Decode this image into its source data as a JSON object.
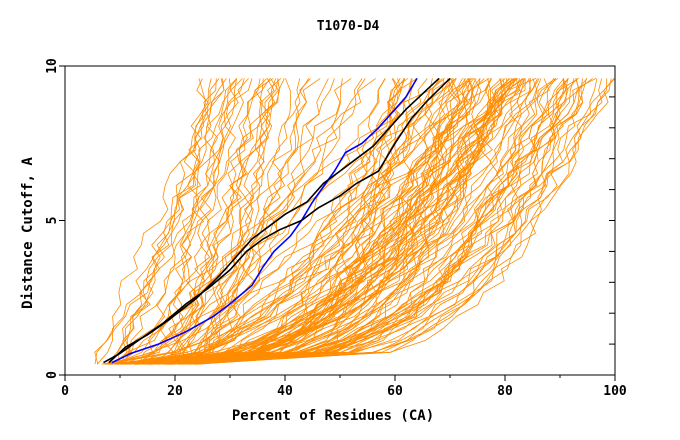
{
  "chart_data": {
    "type": "line",
    "title": "T1070-D4",
    "xlabel": "Percent of Residues (CA)",
    "ylabel": "Distance Cutoff, A",
    "xlim": [
      0,
      100
    ],
    "ylim": [
      0,
      10
    ],
    "x_ticks": [
      "0",
      "20",
      "40",
      "60",
      "80",
      "100"
    ],
    "y_ticks": [
      "0",
      "5",
      "10"
    ],
    "grid": false,
    "colors": {
      "background_models": "#ff8c00",
      "highlight_blue": "#0000ff",
      "highlight_black": "#000000"
    },
    "highlight_series": [
      {
        "name": "model-blue",
        "color": "#0000ff",
        "points": [
          [
            8.5,
            0.4
          ],
          [
            12,
            0.7
          ],
          [
            17,
            1.0
          ],
          [
            22,
            1.4
          ],
          [
            27,
            1.9
          ],
          [
            30,
            2.3
          ],
          [
            34,
            2.9
          ],
          [
            36,
            3.5
          ],
          [
            38,
            4.0
          ],
          [
            41,
            4.5
          ],
          [
            43,
            5.0
          ],
          [
            45,
            5.6
          ],
          [
            47,
            6.1
          ],
          [
            49,
            6.6
          ],
          [
            51,
            7.2
          ],
          [
            54,
            7.5
          ],
          [
            57,
            8.0
          ],
          [
            60,
            8.6
          ],
          [
            62,
            9.0
          ],
          [
            64,
            9.6
          ]
        ]
      },
      {
        "name": "model-black-1",
        "color": "#000000",
        "points": [
          [
            8,
            0.4
          ],
          [
            11,
            0.9
          ],
          [
            15,
            1.3
          ],
          [
            19,
            1.8
          ],
          [
            24,
            2.5
          ],
          [
            28,
            3.2
          ],
          [
            31,
            3.8
          ],
          [
            34,
            4.4
          ],
          [
            37,
            4.8
          ],
          [
            40,
            5.2
          ],
          [
            44,
            5.6
          ],
          [
            47,
            6.2
          ],
          [
            50,
            6.6
          ],
          [
            53,
            7.0
          ],
          [
            56,
            7.4
          ],
          [
            59,
            8.0
          ],
          [
            62,
            8.6
          ],
          [
            65,
            9.1
          ],
          [
            68,
            9.6
          ]
        ]
      },
      {
        "name": "model-black-2",
        "color": "#000000",
        "points": [
          [
            7,
            0.4
          ],
          [
            10,
            0.7
          ],
          [
            14,
            1.2
          ],
          [
            18,
            1.7
          ],
          [
            22,
            2.3
          ],
          [
            26,
            2.8
          ],
          [
            30,
            3.4
          ],
          [
            33,
            4.0
          ],
          [
            36,
            4.4
          ],
          [
            39,
            4.7
          ],
          [
            43,
            5.0
          ],
          [
            46,
            5.4
          ],
          [
            50,
            5.8
          ],
          [
            53,
            6.2
          ],
          [
            57,
            6.6
          ],
          [
            60,
            7.5
          ],
          [
            63,
            8.3
          ],
          [
            66,
            8.9
          ],
          [
            70,
            9.6
          ]
        ]
      }
    ],
    "background_series_count": 150
  }
}
